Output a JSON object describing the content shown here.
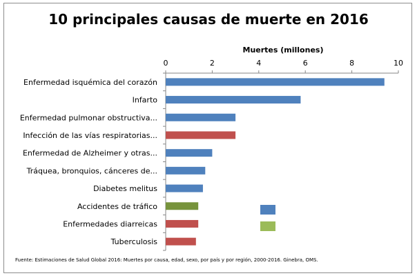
{
  "chart_data": {
    "type": "bar",
    "orientation": "horizontal",
    "title": "10 principales causas de muerte en 2016",
    "xlabel": "Muertes (millones)",
    "xaxis_position": "top",
    "xlim": [
      0,
      10
    ],
    "xticks": [
      "0",
      "2",
      "4",
      "6",
      "8",
      "10"
    ],
    "grid": false,
    "categories": [
      "Enfermedad isquémica del corazón",
      "Infarto",
      "Enfermedad pulmonar obstructiva...",
      "Infección de las vías respiratorias...",
      "Enfermedad de Alzheimer y otras...",
      "Tráquea, bronquios, cánceres de...",
      "Diabetes melitus",
      "Accidentes de tráfico",
      "Enfermedades diarreicas",
      "Tuberculosis"
    ],
    "values": [
      9.4,
      5.8,
      3.0,
      3.0,
      2.0,
      1.7,
      1.6,
      1.4,
      1.4,
      1.3
    ],
    "bar_colors": [
      "#4F81BD",
      "#4F81BD",
      "#4F81BD",
      "#C0504D",
      "#4F81BD",
      "#4F81BD",
      "#4F81BD",
      "#77933C",
      "#C0504D",
      "#C0504D"
    ],
    "legend_swatches": [
      "#4F81BD",
      "#9BBB59"
    ],
    "source": "Fuente:  Estimaciones  de Salud Global 2016: Muertes por causa, edad, sexo, por país y por región,  2000-2016. Ginebra, OMS."
  }
}
